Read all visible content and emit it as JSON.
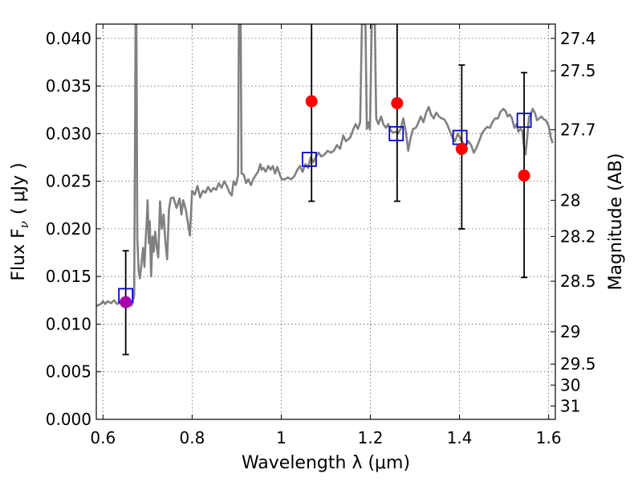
{
  "chart_data": {
    "type": "scatter",
    "xlabel": "Wavelength  λ (μm)",
    "ylabel_left": "Flux  F",
    "ylabel_left_sub": "ν",
    "ylabel_left_unit": "( μJy )",
    "ylabel_right": "Magnitude (AB)",
    "xlim": [
      0.585,
      1.615
    ],
    "ylim": [
      0.0,
      0.0415
    ],
    "grid": true,
    "x_ticks": [
      0.6,
      0.8,
      1.0,
      1.2,
      1.4,
      1.6
    ],
    "x_tick_labels": [
      "0.6",
      "0.8",
      "1",
      "1.2",
      "1.4",
      "1.6"
    ],
    "y_ticks": [
      0.0,
      0.005,
      0.01,
      0.015,
      0.02,
      0.025,
      0.03,
      0.035,
      0.04
    ],
    "y_tick_labels": [
      "0.000",
      "0.005",
      "0.010",
      "0.015",
      "0.020",
      "0.025",
      "0.030",
      "0.035",
      "0.040"
    ],
    "right_ticks": [
      {
        "label": "27.4",
        "flux": 0.04
      },
      {
        "label": "27.5",
        "flux": 0.0366
      },
      {
        "label": "27.7",
        "flux": 0.0304
      },
      {
        "label": "28",
        "flux": 0.023
      },
      {
        "label": "28.2",
        "flux": 0.0192
      },
      {
        "label": "28.5",
        "flux": 0.0145
      },
      {
        "label": "29",
        "flux": 0.0092
      },
      {
        "label": "29.5",
        "flux": 0.0058
      },
      {
        "label": "30",
        "flux": 0.0036
      },
      {
        "label": "31",
        "flux": 0.0014
      }
    ],
    "series": [
      {
        "kind": "line",
        "color": "#808080",
        "points": [
          [
            0.585,
            0.0119
          ],
          [
            0.595,
            0.0121
          ],
          [
            0.6,
            0.0124
          ],
          [
            0.605,
            0.0121
          ],
          [
            0.61,
            0.0124
          ],
          [
            0.618,
            0.0122
          ],
          [
            0.625,
            0.0125
          ],
          [
            0.632,
            0.0121
          ],
          [
            0.64,
            0.0123
          ],
          [
            0.648,
            0.012
          ],
          [
            0.655,
            0.0121
          ],
          [
            0.66,
            0.0119
          ],
          [
            0.665,
            0.012
          ],
          [
            0.67,
            0.013
          ],
          [
            0.672,
            0.03
          ],
          [
            0.673,
            0.0415
          ],
          [
            0.675,
            0.0415
          ],
          [
            0.677,
            0.019
          ],
          [
            0.68,
            0.0155
          ],
          [
            0.683,
            0.0148
          ],
          [
            0.686,
            0.0162
          ],
          [
            0.69,
            0.018
          ],
          [
            0.693,
            0.016
          ],
          [
            0.696,
            0.019
          ],
          [
            0.698,
            0.0207
          ],
          [
            0.7,
            0.023
          ],
          [
            0.703,
            0.0185
          ],
          [
            0.705,
            0.0208
          ],
          [
            0.708,
            0.015
          ],
          [
            0.711,
            0.0192
          ],
          [
            0.714,
            0.0176
          ],
          [
            0.717,
            0.0197
          ],
          [
            0.72,
            0.0183
          ],
          [
            0.724,
            0.017
          ],
          [
            0.728,
            0.0229
          ],
          [
            0.732,
            0.02
          ],
          [
            0.736,
            0.0215
          ],
          [
            0.74,
            0.0186
          ],
          [
            0.744,
            0.0168
          ],
          [
            0.748,
            0.022
          ],
          [
            0.752,
            0.0232
          ],
          [
            0.758,
            0.0233
          ],
          [
            0.765,
            0.0222
          ],
          [
            0.772,
            0.0232
          ],
          [
            0.776,
            0.0215
          ],
          [
            0.78,
            0.023
          ],
          [
            0.786,
            0.022
          ],
          [
            0.791,
            0.0205
          ],
          [
            0.795,
            0.0193
          ],
          [
            0.8,
            0.024
          ],
          [
            0.806,
            0.0236
          ],
          [
            0.812,
            0.0245
          ],
          [
            0.818,
            0.0233
          ],
          [
            0.824,
            0.024
          ],
          [
            0.83,
            0.0238
          ],
          [
            0.836,
            0.0244
          ],
          [
            0.842,
            0.0239
          ],
          [
            0.848,
            0.0243
          ],
          [
            0.854,
            0.0241
          ],
          [
            0.86,
            0.0248
          ],
          [
            0.866,
            0.0243
          ],
          [
            0.872,
            0.025
          ],
          [
            0.878,
            0.0245
          ],
          [
            0.884,
            0.0238
          ],
          [
            0.889,
            0.0235
          ],
          [
            0.893,
            0.025
          ],
          [
            0.898,
            0.0246
          ],
          [
            0.903,
            0.0256
          ],
          [
            0.905,
            0.0415
          ],
          [
            0.909,
            0.0415
          ],
          [
            0.911,
            0.0258
          ],
          [
            0.916,
            0.0257
          ],
          [
            0.921,
            0.0248
          ],
          [
            0.926,
            0.0252
          ],
          [
            0.932,
            0.0246
          ],
          [
            0.937,
            0.0252
          ],
          [
            0.942,
            0.0256
          ],
          [
            0.948,
            0.026
          ],
          [
            0.953,
            0.0268
          ],
          [
            0.956,
            0.0262
          ],
          [
            0.96,
            0.0264
          ],
          [
            0.965,
            0.026
          ],
          [
            0.971,
            0.0266
          ],
          [
            0.976,
            0.0262
          ],
          [
            0.981,
            0.0266
          ],
          [
            0.986,
            0.0258
          ],
          [
            0.991,
            0.0265
          ],
          [
            0.996,
            0.0258
          ],
          [
            1.001,
            0.0252
          ],
          [
            1.008,
            0.0252
          ],
          [
            1.015,
            0.0254
          ],
          [
            1.022,
            0.0252
          ],
          [
            1.029,
            0.0255
          ],
          [
            1.036,
            0.0262
          ],
          [
            1.042,
            0.0266
          ],
          [
            1.048,
            0.026
          ],
          [
            1.054,
            0.0268
          ],
          [
            1.06,
            0.0264
          ],
          [
            1.066,
            0.0275
          ],
          [
            1.072,
            0.027
          ],
          [
            1.078,
            0.0276
          ],
          [
            1.084,
            0.028
          ],
          [
            1.09,
            0.0276
          ],
          [
            1.097,
            0.0278
          ],
          [
            1.104,
            0.0282
          ],
          [
            1.111,
            0.028
          ],
          [
            1.118,
            0.0282
          ],
          [
            1.125,
            0.0288
          ],
          [
            1.132,
            0.0284
          ],
          [
            1.139,
            0.0298
          ],
          [
            1.145,
            0.0292
          ],
          [
            1.15,
            0.0294
          ],
          [
            1.155,
            0.0296
          ],
          [
            1.162,
            0.0305
          ],
          [
            1.167,
            0.031
          ],
          [
            1.172,
            0.0305
          ],
          [
            1.177,
            0.0312
          ],
          [
            1.181,
            0.0415
          ],
          [
            1.189,
            0.0415
          ],
          [
            1.192,
            0.0305
          ],
          [
            1.196,
            0.0312
          ],
          [
            1.199,
            0.0304
          ],
          [
            1.203,
            0.0415
          ],
          [
            1.21,
            0.0415
          ],
          [
            1.213,
            0.0316
          ],
          [
            1.218,
            0.031
          ],
          [
            1.224,
            0.0318
          ],
          [
            1.229,
            0.031
          ],
          [
            1.235,
            0.0306
          ],
          [
            1.24,
            0.031
          ],
          [
            1.245,
            0.0304
          ],
          [
            1.25,
            0.0301
          ],
          [
            1.256,
            0.0302
          ],
          [
            1.262,
            0.03
          ],
          [
            1.268,
            0.0305
          ],
          [
            1.274,
            0.0316
          ],
          [
            1.28,
            0.03
          ],
          [
            1.285,
            0.0282
          ],
          [
            1.29,
            0.0295
          ],
          [
            1.296,
            0.0305
          ],
          [
            1.302,
            0.0306
          ],
          [
            1.308,
            0.0312
          ],
          [
            1.313,
            0.0318
          ],
          [
            1.319,
            0.0312
          ],
          [
            1.325,
            0.0322
          ],
          [
            1.331,
            0.0328
          ],
          [
            1.336,
            0.032
          ],
          [
            1.342,
            0.0316
          ],
          [
            1.348,
            0.0322
          ],
          [
            1.354,
            0.0318
          ],
          [
            1.36,
            0.0316
          ],
          [
            1.366,
            0.0315
          ],
          [
            1.372,
            0.031
          ],
          [
            1.378,
            0.0303
          ],
          [
            1.384,
            0.0296
          ],
          [
            1.39,
            0.0292
          ],
          [
            1.396,
            0.03
          ],
          [
            1.402,
            0.0295
          ],
          [
            1.408,
            0.029
          ],
          [
            1.414,
            0.0287
          ],
          [
            1.42,
            0.0292
          ],
          [
            1.426,
            0.0288
          ],
          [
            1.432,
            0.028
          ],
          [
            1.438,
            0.0285
          ],
          [
            1.444,
            0.0292
          ],
          [
            1.45,
            0.03
          ],
          [
            1.456,
            0.0304
          ],
          [
            1.462,
            0.0307
          ],
          [
            1.468,
            0.0306
          ],
          [
            1.474,
            0.0312
          ],
          [
            1.48,
            0.0316
          ],
          [
            1.486,
            0.0316
          ],
          [
            1.492,
            0.0323
          ],
          [
            1.498,
            0.0326
          ],
          [
            1.503,
            0.0324
          ],
          [
            1.508,
            0.0318
          ],
          [
            1.513,
            0.032
          ],
          [
            1.518,
            0.0316
          ],
          [
            1.523,
            0.0306
          ],
          [
            1.528,
            0.031
          ],
          [
            1.532,
            0.0302
          ],
          [
            1.537,
            0.0305
          ],
          [
            1.541,
            0.0303
          ],
          [
            1.545,
            0.0285
          ],
          [
            1.548,
            0.0278
          ],
          [
            1.552,
            0.0296
          ],
          [
            1.556,
            0.0318
          ],
          [
            1.56,
            0.032
          ],
          [
            1.564,
            0.0326
          ],
          [
            1.569,
            0.0322
          ],
          [
            1.574,
            0.0314
          ],
          [
            1.579,
            0.0316
          ],
          [
            1.584,
            0.0318
          ],
          [
            1.589,
            0.0315
          ],
          [
            1.594,
            0.0314
          ],
          [
            1.6,
            0.0308
          ],
          [
            1.605,
            0.0296
          ],
          [
            1.609,
            0.029
          ]
        ]
      },
      {
        "kind": "errorbar",
        "color": "#000000",
        "points": [
          {
            "x": 0.651,
            "lo": 0.0068,
            "hi": 0.0177
          },
          {
            "x": 1.068,
            "lo": 0.0229,
            "hi": 0.0415
          },
          {
            "x": 1.26,
            "lo": 0.0229,
            "hi": 0.0415
          },
          {
            "x": 1.405,
            "lo": 0.02,
            "hi": 0.0372
          },
          {
            "x": 1.545,
            "lo": 0.0149,
            "hi": 0.0364
          }
        ]
      },
      {
        "kind": "square",
        "color": "#0000cc",
        "points": [
          [
            0.651,
            0.013
          ],
          [
            1.063,
            0.0273
          ],
          [
            1.258,
            0.03
          ],
          [
            1.401,
            0.0296
          ],
          [
            1.545,
            0.0314
          ]
        ]
      },
      {
        "kind": "circle",
        "color": "#ff0000",
        "points": [
          [
            1.068,
            0.0334
          ],
          [
            1.26,
            0.0332
          ],
          [
            1.405,
            0.0284
          ],
          [
            1.545,
            0.0256
          ]
        ]
      },
      {
        "kind": "circle",
        "color": "#aa00aa",
        "points": [
          [
            0.651,
            0.0123
          ]
        ]
      }
    ]
  }
}
